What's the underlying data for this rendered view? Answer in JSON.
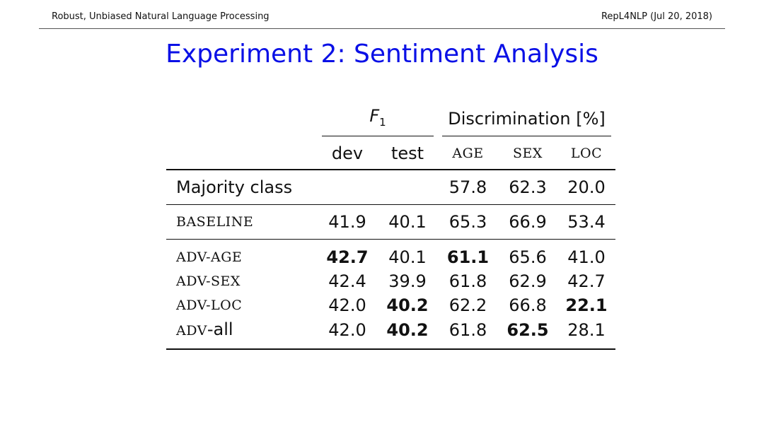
{
  "header": {
    "left": "Robust, Unbiased Natural Language Processing",
    "right": "RepL4NLP (Jul 20, 2018)"
  },
  "title": "Experiment 2: Sentiment Analysis",
  "table": {
    "groups": {
      "f1_base": "F",
      "f1_sub": "1",
      "discrimination": "Discrimination [%]"
    },
    "columns": [
      "dev",
      "test",
      "AGE",
      "SEX",
      "LOC"
    ],
    "rows": [
      {
        "label": "Majority class",
        "values": [
          "",
          "",
          "57.8",
          "62.3",
          "20.0"
        ],
        "bold": [
          false,
          false,
          false,
          false,
          false
        ]
      },
      {
        "label": "BASELINE",
        "values": [
          "41.9",
          "40.1",
          "65.3",
          "66.9",
          "53.4"
        ],
        "bold": [
          false,
          false,
          false,
          false,
          false
        ]
      },
      {
        "label": "ADV-AGE",
        "values": [
          "42.7",
          "40.1",
          "61.1",
          "65.6",
          "41.0"
        ],
        "bold": [
          true,
          false,
          true,
          false,
          false
        ]
      },
      {
        "label": "ADV-SEX",
        "values": [
          "42.4",
          "39.9",
          "61.8",
          "62.9",
          "42.7"
        ],
        "bold": [
          false,
          false,
          false,
          false,
          false
        ]
      },
      {
        "label": "ADV-LOC",
        "values": [
          "42.0",
          "40.2",
          "62.2",
          "66.8",
          "22.1"
        ],
        "bold": [
          false,
          true,
          false,
          false,
          true
        ]
      },
      {
        "label_sc": "ADV",
        "label_rest": "-all",
        "values": [
          "42.0",
          "40.2",
          "61.8",
          "62.5",
          "28.1"
        ],
        "bold": [
          false,
          true,
          false,
          true,
          false
        ]
      }
    ]
  }
}
